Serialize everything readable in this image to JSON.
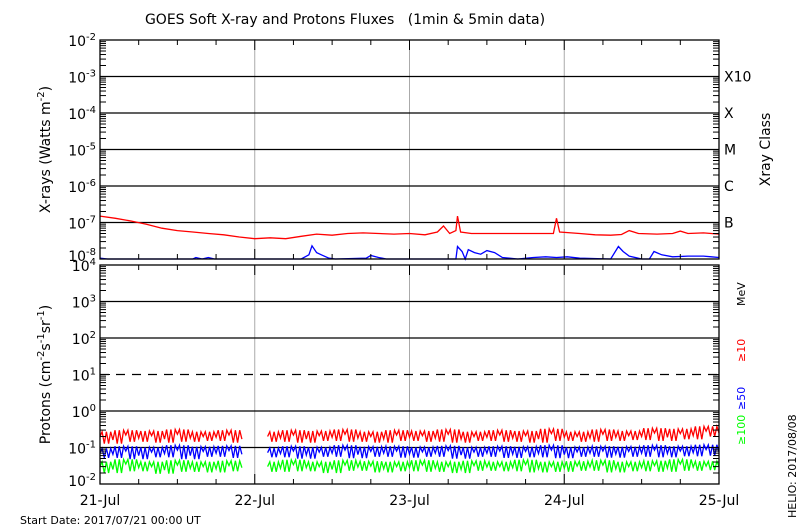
{
  "chart_data": [
    {
      "type": "line",
      "title": "GOES Soft X-ray and Protons Fluxes   (1min & 5min data)",
      "ylabel": "X-rays (Watts m^-2)",
      "ylabel_parts": [
        "X-rays (Watts m",
        "-2",
        ")"
      ],
      "yscale": "log",
      "ylim": [
        1e-08,
        0.01
      ],
      "ytick_labels": [
        {
          "base": "10",
          "exp": "-2",
          "value": 0.01
        },
        {
          "base": "10",
          "exp": "-3",
          "value": 0.001
        },
        {
          "base": "10",
          "exp": "-4",
          "value": 0.0001
        },
        {
          "base": "10",
          "exp": "-5",
          "value": 1e-05
        },
        {
          "base": "10",
          "exp": "-6",
          "value": 1e-06
        },
        {
          "base": "10",
          "exp": "-7",
          "value": 1e-07
        },
        {
          "base": "10",
          "exp": "-8",
          "value": 1e-08
        }
      ],
      "right_axis_label": "Xray Class",
      "class_labels": [
        {
          "label": "X10",
          "value": 0.001
        },
        {
          "label": "X",
          "value": 0.0001
        },
        {
          "label": "M",
          "value": 1e-05
        },
        {
          "label": "C",
          "value": 1e-06
        },
        {
          "label": "B",
          "value": 1e-07
        }
      ],
      "grid_lines": [
        0.001,
        0.0001,
        1e-05,
        1e-06,
        1e-07
      ],
      "xlim_days": [
        0,
        4
      ],
      "series": [
        {
          "color": "#ff0000",
          "points": [
            [
              0,
              1.5e-07
            ],
            [
              0.1,
              1.3e-07
            ],
            [
              0.2,
              1.1e-07
            ],
            [
              0.3,
              9e-08
            ],
            [
              0.4,
              7e-08
            ],
            [
              0.5,
              6e-08
            ],
            [
              0.6,
              5.5e-08
            ],
            [
              0.7,
              5e-08
            ],
            [
              0.8,
              4.6e-08
            ],
            [
              0.9,
              4e-08
            ],
            [
              1.0,
              3.6e-08
            ],
            [
              1.1,
              3.8e-08
            ],
            [
              1.2,
              3.6e-08
            ],
            [
              1.3,
              4.2e-08
            ],
            [
              1.4,
              4.8e-08
            ],
            [
              1.5,
              4.5e-08
            ],
            [
              1.6,
              5e-08
            ],
            [
              1.7,
              5.2e-08
            ],
            [
              1.8,
              5e-08
            ],
            [
              1.9,
              4.8e-08
            ],
            [
              2.0,
              5e-08
            ],
            [
              2.1,
              4.6e-08
            ],
            [
              2.18,
              5.5e-08
            ],
            [
              2.22,
              8e-08
            ],
            [
              2.26,
              5e-08
            ],
            [
              2.3,
              6e-08
            ],
            [
              2.31,
              1.5e-07
            ],
            [
              2.33,
              5.5e-08
            ],
            [
              2.4,
              5e-08
            ],
            [
              2.6,
              5e-08
            ],
            [
              2.8,
              5e-08
            ],
            [
              2.93,
              5e-08
            ],
            [
              2.95,
              1.3e-07
            ],
            [
              2.97,
              5.5e-08
            ],
            [
              3.1,
              5e-08
            ],
            [
              3.2,
              4.6e-08
            ],
            [
              3.3,
              4.5e-08
            ],
            [
              3.37,
              4.7e-08
            ],
            [
              3.42,
              6e-08
            ],
            [
              3.48,
              5e-08
            ],
            [
              3.6,
              4.8e-08
            ],
            [
              3.7,
              5e-08
            ],
            [
              3.75,
              5.8e-08
            ],
            [
              3.8,
              5e-08
            ],
            [
              3.9,
              5.2e-08
            ],
            [
              4.0,
              4.8e-08
            ]
          ]
        },
        {
          "color": "#0000ff",
          "points": [
            [
              0,
              1.05e-08
            ],
            [
              0.05,
              1e-08
            ],
            [
              0.6,
              1e-08
            ],
            [
              0.62,
              1.1e-08
            ],
            [
              0.66,
              1e-08
            ],
            [
              0.7,
              1.1e-08
            ],
            [
              0.74,
              1e-08
            ],
            [
              1.3,
              1e-08
            ],
            [
              1.35,
              1.3e-08
            ],
            [
              1.37,
              2.3e-08
            ],
            [
              1.4,
              1.5e-08
            ],
            [
              1.43,
              1.3e-08
            ],
            [
              1.48,
              1.05e-08
            ],
            [
              1.52,
              1e-08
            ],
            [
              1.72,
              1.05e-08
            ],
            [
              1.75,
              1.25e-08
            ],
            [
              1.8,
              1.1e-08
            ],
            [
              1.85,
              1e-08
            ],
            [
              2.3,
              1e-08
            ],
            [
              2.31,
              2.2e-08
            ],
            [
              2.34,
              1.6e-08
            ],
            [
              2.36,
              1e-08
            ],
            [
              2.38,
              1.8e-08
            ],
            [
              2.42,
              1.5e-08
            ],
            [
              2.46,
              1.35e-08
            ],
            [
              2.5,
              1.7e-08
            ],
            [
              2.55,
              1.5e-08
            ],
            [
              2.6,
              1.1e-08
            ],
            [
              2.7,
              1e-08
            ],
            [
              2.8,
              1.1e-08
            ],
            [
              2.88,
              1.15e-08
            ],
            [
              2.95,
              1.1e-08
            ],
            [
              3.02,
              1.15e-08
            ],
            [
              3.1,
              1.05e-08
            ],
            [
              3.3,
              1e-08
            ],
            [
              3.35,
              2.2e-08
            ],
            [
              3.38,
              1.6e-08
            ],
            [
              3.42,
              1.2e-08
            ],
            [
              3.5,
              1e-08
            ],
            [
              3.55,
              1e-08
            ],
            [
              3.58,
              1.6e-08
            ],
            [
              3.63,
              1.3e-08
            ],
            [
              3.7,
              1.15e-08
            ],
            [
              3.8,
              1.2e-08
            ],
            [
              3.9,
              1.2e-08
            ],
            [
              3.95,
              1.15e-08
            ],
            [
              4.0,
              1.1e-08
            ]
          ]
        }
      ]
    },
    {
      "type": "line",
      "ylabel_parts": [
        "Protons (cm",
        "-2",
        "s",
        "-1",
        "sr",
        "-1",
        ")"
      ],
      "yscale": "log",
      "ylim": [
        0.01,
        10000.0
      ],
      "ytick_labels": [
        {
          "base": "10",
          "exp": "4",
          "value": 10000.0
        },
        {
          "base": "10",
          "exp": "3",
          "value": 1000.0
        },
        {
          "base": "10",
          "exp": "2",
          "value": 100.0
        },
        {
          "base": "10",
          "exp": "1",
          "value": 10.0
        },
        {
          "base": "10",
          "exp": "0",
          "value": 1.0
        },
        {
          "base": "10",
          "exp": "-1",
          "value": 0.1
        },
        {
          "base": "10",
          "exp": "-2",
          "value": 0.01
        }
      ],
      "grid_lines": [
        1000.0,
        100.0,
        1.0,
        0.1
      ],
      "threshold_line": 10,
      "energy_unit": "MeV",
      "xlim_days": [
        0,
        4
      ],
      "xtick_labels": [
        "21-Jul",
        "22-Jul",
        "23-Jul",
        "24-Jul",
        "25-Jul"
      ],
      "sample_step_hours": 2,
      "series": [
        {
          "name": "≥100",
          "color": "#00ff00",
          "values": [
            0.03,
            0.025,
            0.035,
            0.028,
            0.03,
            0.024,
            0.033,
            0.027,
            0.03,
            0.026,
            0.032,
            0.028,
            null,
            0.03,
            0.027,
            0.034,
            0.028,
            0.03,
            0.025,
            0.033,
            0.029,
            0.031,
            0.026,
            0.03,
            0.028,
            0.033,
            0.027,
            0.03,
            0.025,
            0.032,
            0.029,
            0.03,
            0.028,
            0.034,
            0.026,
            0.03,
            0.027,
            0.031,
            0.029,
            0.033,
            0.026,
            0.03,
            0.028,
            0.032,
            0.027,
            0.035,
            0.029,
            0.031,
            0.03
          ]
        },
        {
          "name": "≥50",
          "color": "#0000ff",
          "values": [
            0.07,
            0.065,
            0.08,
            0.06,
            0.075,
            0.068,
            0.085,
            0.06,
            0.078,
            0.07,
            0.082,
            0.065,
            null,
            0.072,
            0.068,
            0.08,
            0.062,
            0.075,
            0.07,
            0.085,
            0.064,
            0.078,
            0.07,
            0.08,
            0.066,
            0.076,
            0.07,
            0.082,
            0.062,
            0.075,
            0.07,
            0.08,
            0.065,
            0.078,
            0.068,
            0.085,
            0.064,
            0.076,
            0.07,
            0.08,
            0.066,
            0.078,
            0.07,
            0.085,
            0.068,
            0.08,
            0.072,
            0.088,
            0.075
          ]
        },
        {
          "name": "≥10",
          "color": "#ff0000",
          "values": [
            0.2,
            0.16,
            0.22,
            0.18,
            0.21,
            0.17,
            0.23,
            0.18,
            0.2,
            0.19,
            0.22,
            0.17,
            null,
            0.2,
            0.18,
            0.22,
            0.17,
            0.21,
            0.19,
            0.23,
            0.18,
            0.2,
            0.17,
            0.22,
            0.19,
            0.21,
            0.18,
            0.23,
            0.17,
            0.2,
            0.19,
            0.22,
            0.18,
            0.21,
            0.17,
            0.24,
            0.19,
            0.2,
            0.18,
            0.23,
            0.19,
            0.21,
            0.2,
            0.25,
            0.19,
            0.24,
            0.21,
            0.28,
            0.25
          ]
        }
      ]
    }
  ],
  "footer": {
    "start_date": "Start Date: 2017/07/21 00:00 UT",
    "credit": "HELIO: 2017/08/08"
  },
  "colors": {
    "grid": "#000000",
    "day_line": "#aaaaaa",
    "xray_long": "#ff0000",
    "xray_short": "#0000ff"
  }
}
